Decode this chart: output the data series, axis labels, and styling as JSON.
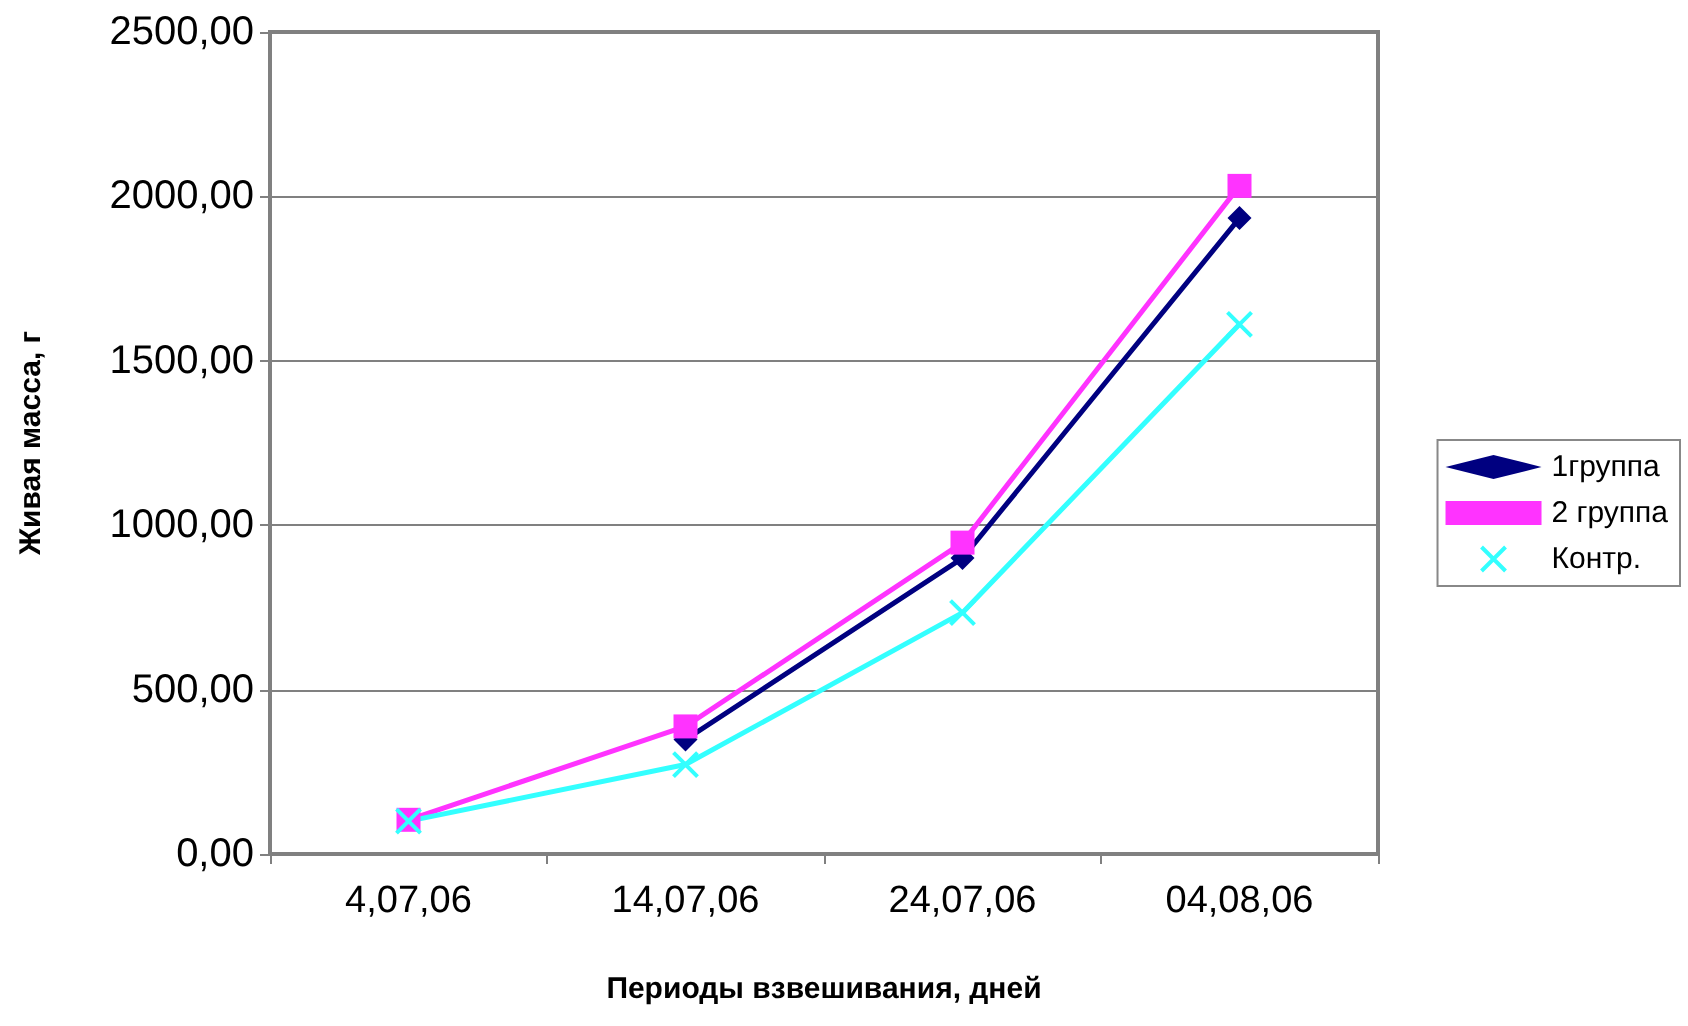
{
  "chart_data": {
    "type": "line",
    "xlabel": "Периоды взвешивания, дней",
    "ylabel": "Живая масса, г",
    "categories": [
      "4,07,06",
      "14,07,06",
      "24,07,06",
      "04,08,06"
    ],
    "series": [
      {
        "name": "1группа",
        "color": "#000080",
        "marker": "diamond",
        "values": [
          null,
          348,
          900,
          1934
        ]
      },
      {
        "name": "2 группа",
        "color": "#ff33ff",
        "marker": "square",
        "values": [
          104,
          388,
          947,
          2032
        ]
      },
      {
        "name": "Контр.",
        "color": "#33ffff",
        "marker": "cross",
        "values": [
          100,
          272,
          734,
          1611
        ]
      }
    ],
    "ylim": [
      0,
      2500
    ],
    "yticks": [
      {
        "value": 0,
        "label": "0,00"
      },
      {
        "value": 500,
        "label": "500,00"
      },
      {
        "value": 1000,
        "label": "1000,00"
      },
      {
        "value": 1500,
        "label": "1500,00"
      },
      {
        "value": 2000,
        "label": "2000,00"
      },
      {
        "value": 2500,
        "label": "2500,00"
      }
    ],
    "grid": "y",
    "legend": "right",
    "line_style": "solid"
  }
}
